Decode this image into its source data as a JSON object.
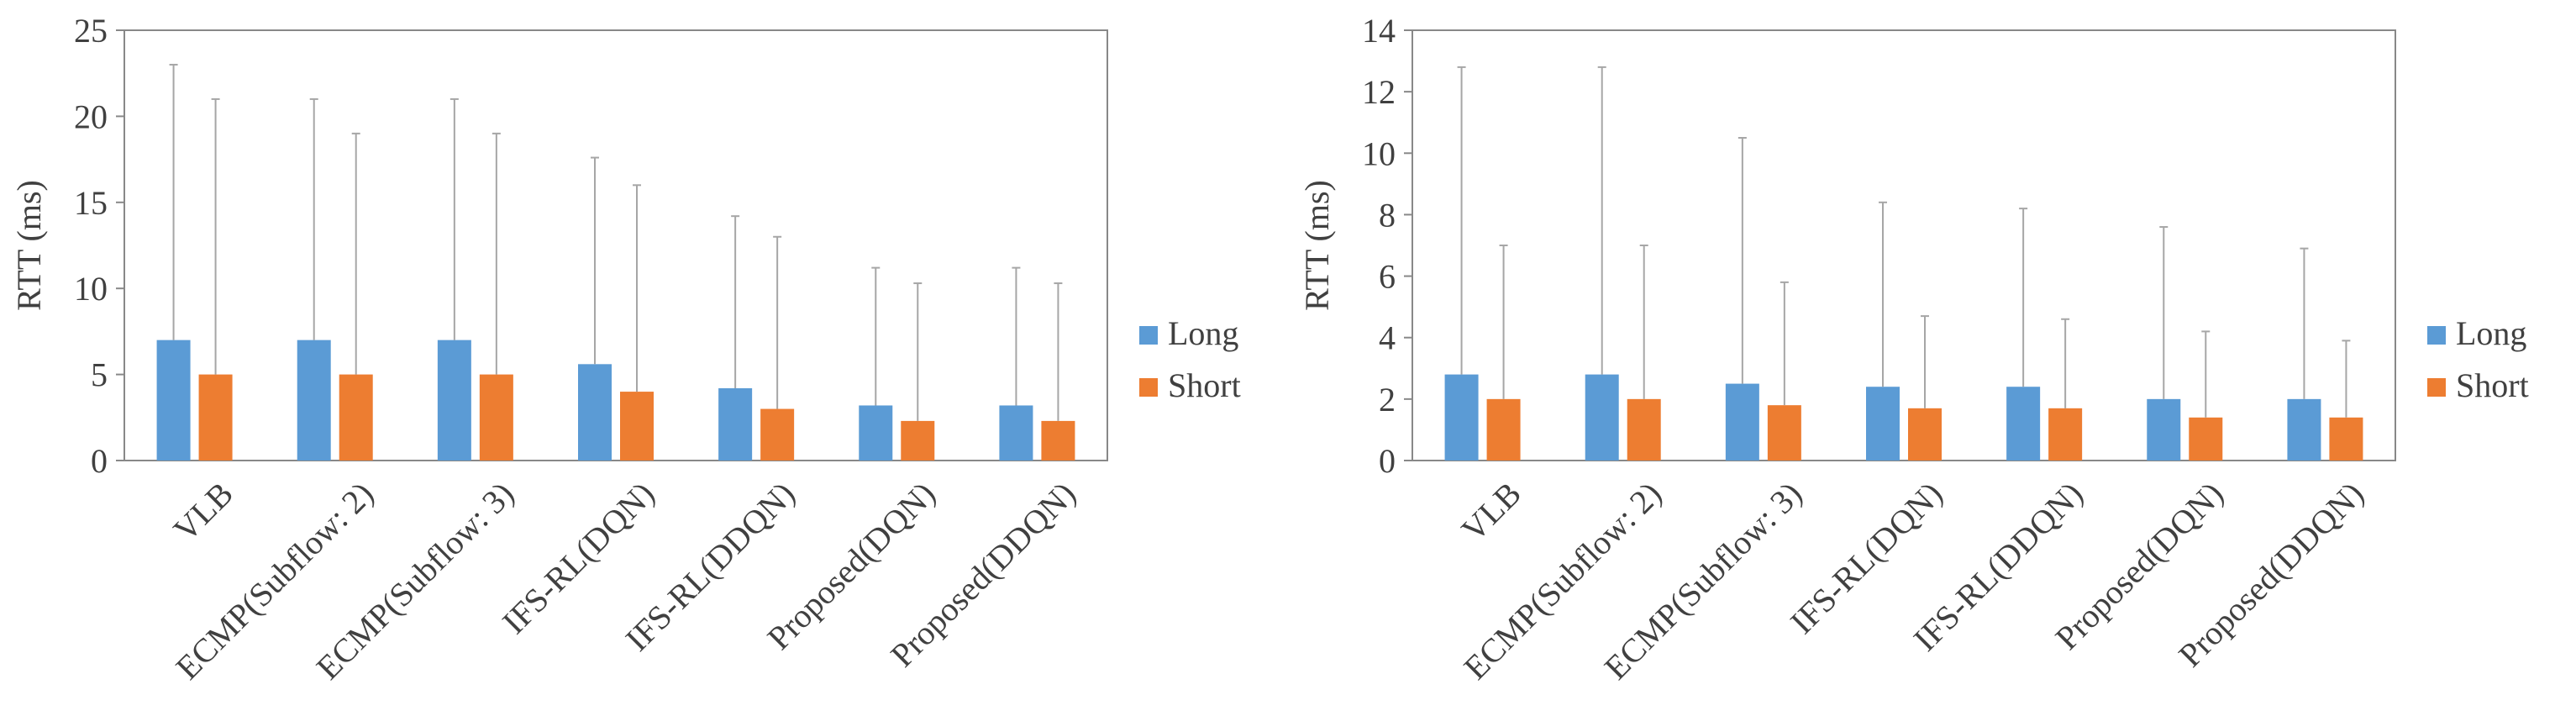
{
  "chart_data": [
    {
      "type": "bar",
      "ylabel": "RTT (ms)",
      "xlabel": "",
      "title": "",
      "ylim": [
        0,
        25
      ],
      "yticks": [
        "0",
        "5",
        "10",
        "15",
        "20",
        "25"
      ],
      "ytick_values": [
        0,
        5,
        10,
        15,
        20,
        25
      ],
      "categories": [
        "VLB",
        "ECMP(Subflow: 2)",
        "ECMP(Subflow: 3)",
        "IFS-RL(DQN)",
        "IFS-RL(DDQN)",
        "Proposed(DQN)",
        "Proposed(DDQN)"
      ],
      "series": [
        {
          "name": "Long",
          "color": "#5B9BD5",
          "values": [
            7.0,
            7.0,
            7.0,
            5.6,
            4.2,
            3.2,
            3.2
          ],
          "error_high": [
            23.0,
            21.0,
            21.0,
            17.6,
            14.2,
            11.2,
            11.2
          ]
        },
        {
          "name": "Short",
          "color": "#ED7D31",
          "values": [
            5.0,
            5.0,
            5.0,
            4.0,
            3.0,
            2.3,
            2.3
          ],
          "error_high": [
            21.0,
            19.0,
            19.0,
            16.0,
            13.0,
            10.3,
            10.3
          ]
        }
      ],
      "legend": [
        "Long",
        "Short"
      ],
      "legend_position": "right"
    },
    {
      "type": "bar",
      "ylabel": "RTT (ms)",
      "xlabel": "",
      "title": "",
      "ylim": [
        0,
        14
      ],
      "yticks": [
        "0",
        "2",
        "4",
        "6",
        "8",
        "10",
        "12",
        "14"
      ],
      "ytick_values": [
        0,
        2,
        4,
        6,
        8,
        10,
        12,
        14
      ],
      "categories": [
        "VLB",
        "ECMP(Subflow: 2)",
        "ECMP(Subflow: 3)",
        "IFS-RL(DQN)",
        "IFS-RL(DDQN)",
        "Proposed(DQN)",
        "Proposed(DDQN)"
      ],
      "series": [
        {
          "name": "Long",
          "color": "#5B9BD5",
          "values": [
            2.8,
            2.8,
            2.5,
            2.4,
            2.4,
            2.0,
            2.0
          ],
          "error_high": [
            12.8,
            12.8,
            10.5,
            8.4,
            8.2,
            7.6,
            6.9
          ]
        },
        {
          "name": "Short",
          "color": "#ED7D31",
          "values": [
            2.0,
            2.0,
            1.8,
            1.7,
            1.7,
            1.4,
            1.4
          ],
          "error_high": [
            7.0,
            7.0,
            5.8,
            4.7,
            4.6,
            4.2,
            3.9
          ]
        }
      ],
      "legend": [
        "Long",
        "Short"
      ],
      "legend_position": "right"
    }
  ],
  "axis_color": "#888888",
  "whisker_color": "#a6a6a6"
}
